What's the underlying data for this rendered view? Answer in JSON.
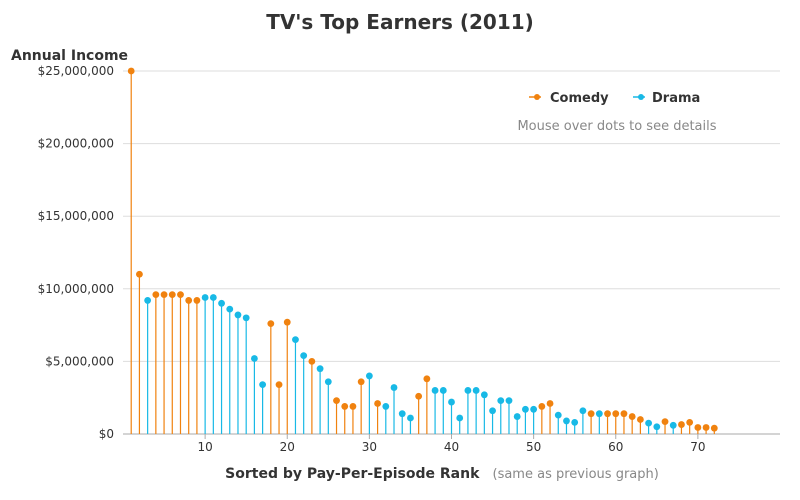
{
  "chart_data": {
    "type": "scatter",
    "title": "TV's Top Earners (2011)",
    "ylabel": "Annual Income",
    "xlabel": "Sorted by Pay-Per-Episode Rank",
    "xlabel_note": "(same as previous graph)",
    "hint": "Mouse over dots to see details",
    "ylim": [
      0,
      25000000
    ],
    "xlim": [
      0,
      80
    ],
    "y_ticks": [
      0,
      5000000,
      10000000,
      15000000,
      20000000,
      25000000
    ],
    "y_tick_labels": [
      "$0",
      "$5,000,000",
      "$10,000,000",
      "$15,000,000",
      "$20,000,000",
      "$25,000,000"
    ],
    "x_ticks": [
      10,
      20,
      30,
      40,
      50,
      60,
      70
    ],
    "x_tick_labels": [
      "10",
      "20",
      "30",
      "40",
      "50",
      "60",
      "70"
    ],
    "grid": true,
    "legend_position": "top-right",
    "colors": {
      "Comedy": "#f0820f",
      "Drama": "#18b9e6"
    },
    "series": [
      {
        "name": "Comedy",
        "x": [
          1,
          2,
          4,
          5,
          6,
          7,
          8,
          9,
          18,
          19,
          20,
          23,
          26,
          27,
          28,
          29,
          31,
          36,
          37,
          51,
          52,
          57,
          59,
          60,
          61,
          62,
          63,
          66,
          68,
          69,
          70,
          71,
          72
        ],
        "y": [
          25000000,
          11000000,
          9600000,
          9600000,
          9600000,
          9600000,
          9200000,
          9200000,
          7600000,
          3400000,
          7700000,
          5000000,
          2300000,
          1900000,
          1900000,
          3600000,
          2100000,
          2600000,
          3800000,
          1900000,
          2100000,
          1400000,
          1400000,
          1400000,
          1400000,
          1200000,
          1000000,
          850000,
          650000,
          800000,
          450000,
          450000,
          400000
        ]
      },
      {
        "name": "Drama",
        "x": [
          3,
          10,
          11,
          12,
          13,
          14,
          15,
          16,
          17,
          21,
          22,
          24,
          25,
          30,
          32,
          33,
          34,
          35,
          38,
          39,
          40,
          41,
          42,
          43,
          44,
          45,
          46,
          47,
          48,
          49,
          50,
          53,
          54,
          55,
          56,
          58,
          64,
          65,
          67
        ],
        "y": [
          9200000,
          9400000,
          9400000,
          9000000,
          8600000,
          8200000,
          8000000,
          5200000,
          3400000,
          6500000,
          5400000,
          4500000,
          3600000,
          4000000,
          1900000,
          3200000,
          1400000,
          1100000,
          3000000,
          3000000,
          2200000,
          1100000,
          3000000,
          3000000,
          2700000,
          1600000,
          2300000,
          2300000,
          1200000,
          1700000,
          1700000,
          1300000,
          900000,
          800000,
          1600000,
          1400000,
          750000,
          500000,
          600000
        ]
      }
    ]
  }
}
